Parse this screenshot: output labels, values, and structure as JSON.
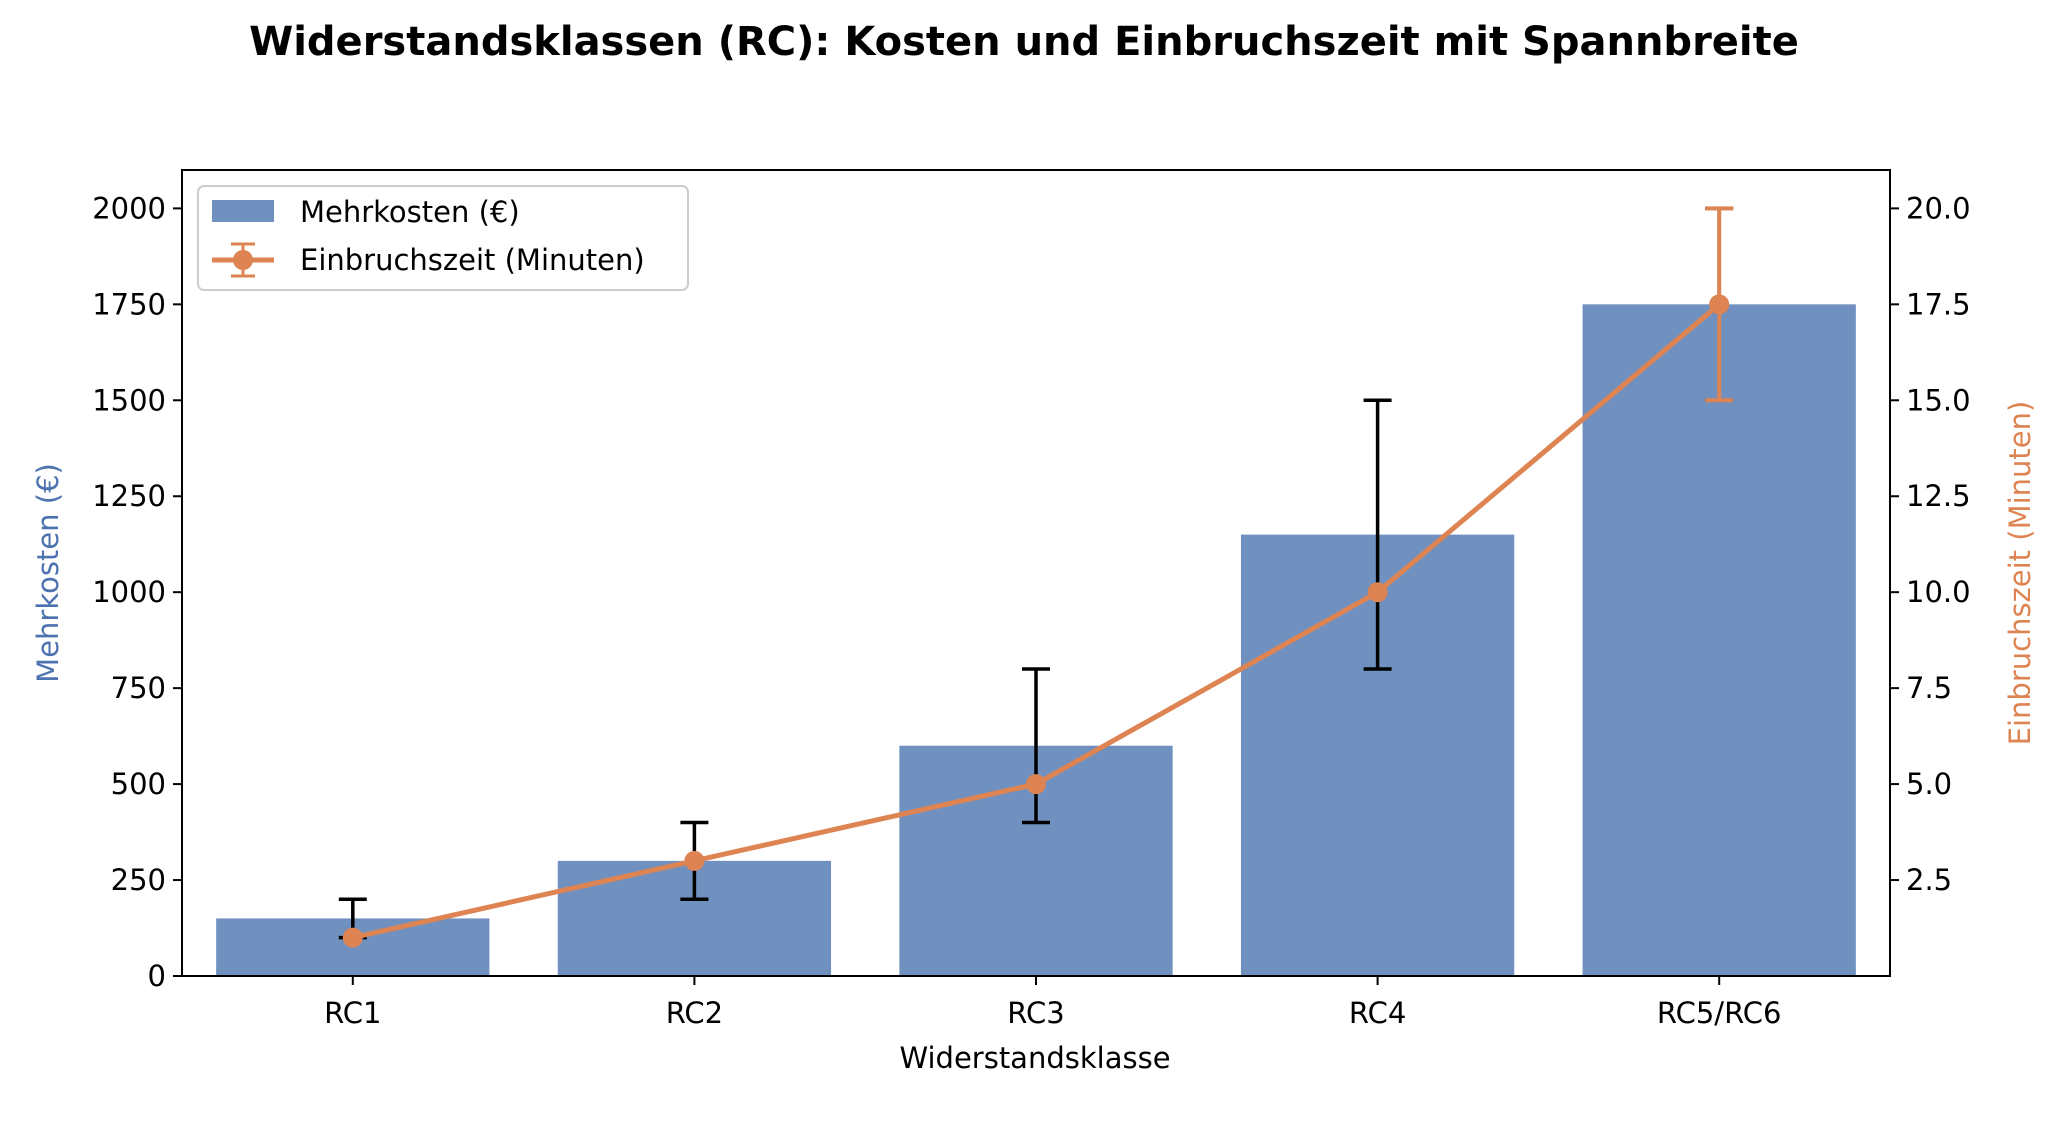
{
  "chart_data": {
    "type": "bar",
    "title": "Widerstandsklassen (RC): Kosten und Einbruchszeit mit Spannbreite",
    "xlabel": "Widerstandsklasse",
    "ylabel": "Mehrkosten (€)",
    "y2label": "Einbruchszeit (Minuten)",
    "categories": [
      "RC1",
      "RC2",
      "RC3",
      "RC4",
      "RC5/RC6"
    ],
    "ylim": [
      0,
      2100
    ],
    "y2lim": [
      0,
      21
    ],
    "yticks": [
      0,
      250,
      500,
      750,
      1000,
      1250,
      1500,
      1750,
      2000
    ],
    "y2ticks": [
      2.5,
      5.0,
      7.5,
      10.0,
      12.5,
      15.0,
      17.5,
      20.0
    ],
    "series": [
      {
        "name": "Mehrkosten (€)",
        "type": "bar",
        "axis": "left",
        "color": "#7090c0",
        "values": [
          150,
          300,
          600,
          1150,
          1750
        ],
        "error_low": [
          100,
          200,
          400,
          800,
          1500
        ],
        "error_high": [
          200,
          400,
          800,
          1500,
          2000
        ],
        "error_color": "#000000"
      },
      {
        "name": "Einbruchszeit (Minuten)",
        "type": "line",
        "axis": "right",
        "color": "#dd8452",
        "values": [
          1,
          3,
          5,
          10,
          17.5
        ],
        "error_low": [
          null,
          null,
          null,
          null,
          15
        ],
        "error_high": [
          null,
          null,
          null,
          null,
          20
        ]
      }
    ],
    "legend": {
      "position": "top-left"
    },
    "grid": false
  }
}
